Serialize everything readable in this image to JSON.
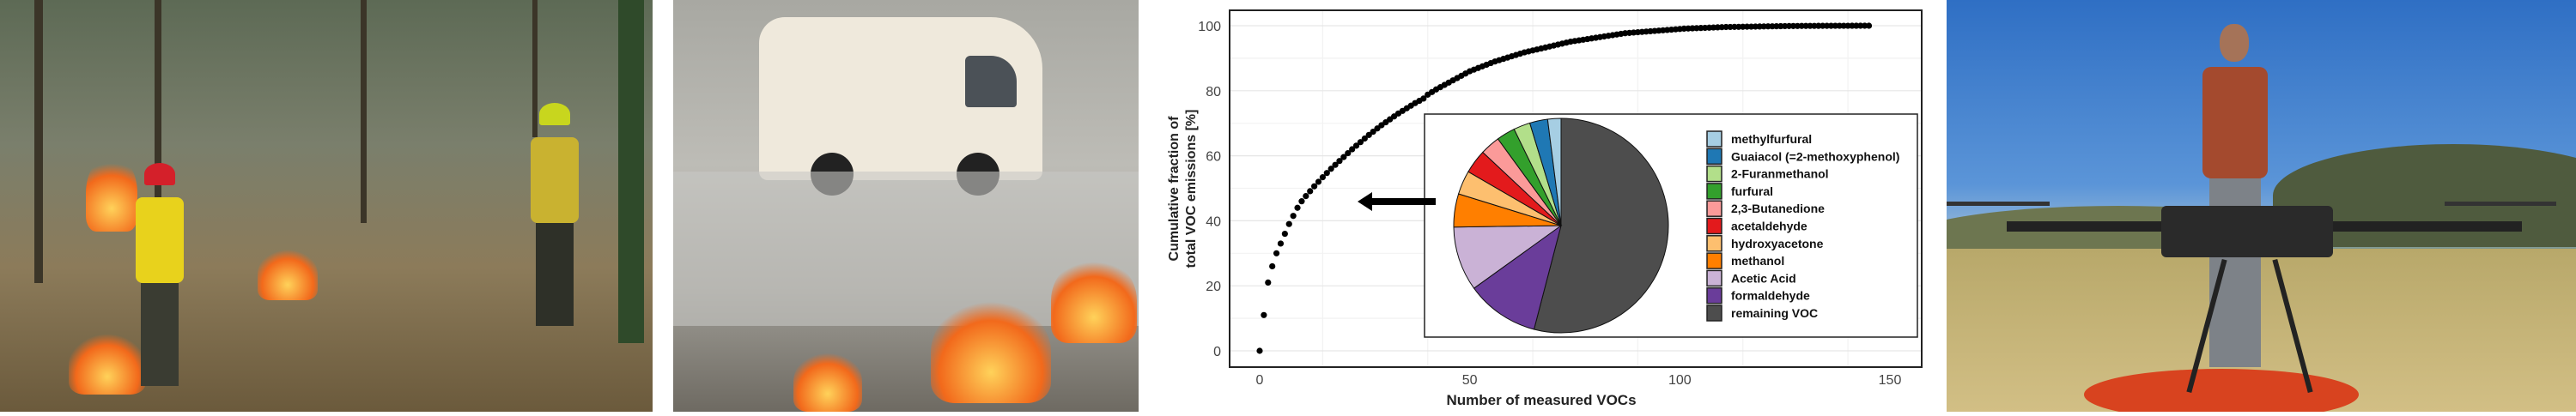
{
  "chart_data": {
    "type": "scatter",
    "title": "",
    "xlabel": "Number of measured VOCs",
    "ylabel": [
      "Cumulative fraction of",
      "total VOC emissions [%]"
    ],
    "xlim": [
      0,
      150
    ],
    "ylim": [
      0,
      100
    ],
    "xticks": [
      "0",
      "50",
      "100",
      "150"
    ],
    "yticks": [
      "0",
      "20",
      "40",
      "60",
      "80",
      "100"
    ],
    "grid": true,
    "y": [
      0,
      11,
      21,
      26,
      30,
      33,
      36,
      39,
      41.5,
      44,
      46,
      47.6,
      49.1,
      50.6,
      52,
      53.4,
      54.7,
      56,
      57.2,
      58.4,
      59.6,
      60.8,
      62,
      63.1,
      64.2,
      65.3,
      66.4,
      67.4,
      68.4,
      69.4,
      70.3,
      71.2,
      72.1,
      73,
      73.8,
      74.6,
      75.4,
      76.2,
      76.9,
      77.6,
      78.8,
      79.6,
      80.4,
      81.1,
      81.8,
      82.5,
      83.2,
      83.9,
      84.6,
      85.3,
      86,
      86.5,
      87,
      87.5,
      88,
      88.5,
      89,
      89.4,
      89.8,
      90.2,
      90.6,
      91,
      91.4,
      91.8,
      92.1,
      92.4,
      92.7,
      93,
      93.3,
      93.6,
      93.9,
      94.2,
      94.5,
      94.8,
      95.1,
      95.3,
      95.5,
      95.7,
      95.9,
      96.1,
      96.3,
      96.5,
      96.7,
      96.9,
      97.1,
      97.3,
      97.5,
      97.7,
      97.8,
      97.9,
      98,
      98.1,
      98.2,
      98.3,
      98.4,
      98.5,
      98.6,
      98.7,
      98.8,
      98.9,
      99,
      99.1,
      99.15,
      99.2,
      99.25,
      99.3,
      99.35,
      99.4,
      99.45,
      99.5,
      99.55,
      99.6,
      99.62,
      99.64,
      99.66,
      99.68,
      99.7,
      99.72,
      99.74,
      99.76,
      99.78,
      99.8,
      99.82,
      99.84,
      99.86,
      99.88,
      99.9,
      99.91,
      99.92,
      99.93,
      99.94,
      99.95,
      99.955,
      99.96,
      99.965,
      99.97,
      99.975,
      99.98,
      99.983,
      99.986,
      99.989,
      99.992,
      99.994,
      99.996,
      99.998,
      100
    ],
    "inset": {
      "type": "pie",
      "legend_position": "right",
      "slices": [
        {
          "label": "remaining VOC",
          "value": 54,
          "color": "#4d4d4d"
        },
        {
          "label": "formaldehyde",
          "value": 11,
          "color": "#6a3d9a"
        },
        {
          "label": "Acetic Acid",
          "value": 9.7,
          "color": "#cab2d6"
        },
        {
          "label": "methanol",
          "value": 5,
          "color": "#ff7f00"
        },
        {
          "label": "hydroxyacetone",
          "value": 3.6,
          "color": "#fdbf6f"
        },
        {
          "label": "acetaldehyde",
          "value": 3.6,
          "color": "#e31a1c"
        },
        {
          "label": "2,3-Butanedione",
          "value": 3,
          "color": "#fb9a99"
        },
        {
          "label": "furfural",
          "value": 2.8,
          "color": "#33a02c"
        },
        {
          "label": "2-Furanmethanol",
          "value": 2.5,
          "color": "#b2df8a"
        },
        {
          "label": "Guaiacol (=2-methoxyphenol)",
          "value": 2.7,
          "color": "#1f78b4"
        },
        {
          "label": "methylfurfural",
          "value": 2,
          "color": "#a6cee3"
        }
      ],
      "legend_order": [
        "methylfurfural",
        "Guaiacol (=2-methoxyphenol)",
        "2-Furanmethanol",
        "furfural",
        "2,3-Butanedione",
        "acetaldehyde",
        "hydroxyacetone",
        "methanol",
        "Acetic Acid",
        "formaldehyde",
        "remaining VOC"
      ]
    }
  }
}
